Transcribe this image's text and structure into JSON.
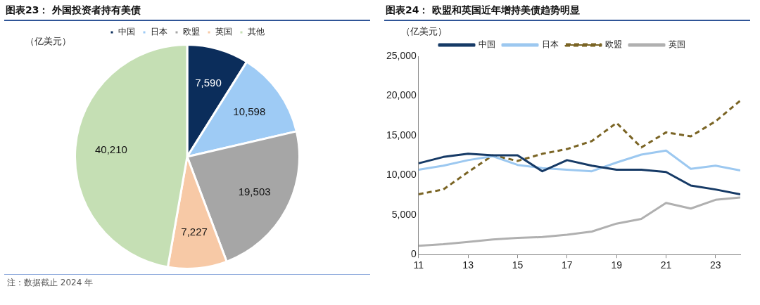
{
  "chart_data": [
    {
      "type": "pie",
      "title": "图表23：  外国投资者持有美债",
      "subtitle": "（亿美元）",
      "categories": [
        "中国",
        "日本",
        "欧盟",
        "英国",
        "其他"
      ],
      "values": [
        7590,
        10598,
        19503,
        7227,
        40210
      ],
      "value_labels": [
        "7,590",
        "10,598",
        "19,503",
        "7,227",
        "40,210"
      ],
      "colors": [
        "#0b2d5b",
        "#9ecbf5",
        "#a6a6a6",
        "#f7c9a6",
        "#c5dfb4"
      ],
      "legend": "top",
      "annotations": [
        "注：数据截止 2024 年"
      ]
    },
    {
      "type": "line",
      "title": "图表24：  欧盟和英国近年增持美债趋势明显",
      "ylabel": "（亿美元）",
      "x": [
        11,
        12,
        13,
        14,
        15,
        16,
        17,
        18,
        19,
        20,
        21,
        22,
        23,
        24
      ],
      "xlim": [
        11,
        24
      ],
      "xticks": [
        11,
        13,
        15,
        17,
        19,
        21,
        23
      ],
      "ylim": [
        0,
        25000
      ],
      "yticks": [
        0,
        {
          "value": 5000,
          "label": "5,000"
        },
        {
          "value": 10000,
          "label": "10,000"
        },
        {
          "value": 15000,
          "label": "15,000"
        },
        {
          "value": 20000,
          "label": "20,000"
        },
        {
          "value": 25000,
          "label": "25,000"
        }
      ],
      "grid": false,
      "legend": "top",
      "marker": "none",
      "series": [
        {
          "name": "中国",
          "color": "#163a66",
          "line_style": "solid",
          "values": [
            11500,
            12300,
            12700,
            12500,
            12500,
            10500,
            11900,
            11200,
            10700,
            10700,
            10400,
            8700,
            8200,
            7600
          ]
        },
        {
          "name": "日本",
          "color": "#9cc8f0",
          "line_style": "solid",
          "values": [
            10700,
            11200,
            11900,
            12400,
            11300,
            10900,
            10700,
            10500,
            11600,
            12600,
            13100,
            10800,
            11200,
            10600
          ]
        },
        {
          "name": "欧盟",
          "color": "#7a6424",
          "line_style": "dashed",
          "values": [
            7600,
            8200,
            10400,
            12500,
            11800,
            12700,
            13300,
            14300,
            16600,
            13500,
            15400,
            14900,
            16800,
            19400
          ]
        },
        {
          "name": "英国",
          "color": "#b0b0b0",
          "line_style": "solid",
          "values": [
            1100,
            1300,
            1600,
            1900,
            2100,
            2200,
            2500,
            2900,
            3900,
            4500,
            6500,
            5800,
            6900,
            7200
          ]
        }
      ]
    }
  ]
}
